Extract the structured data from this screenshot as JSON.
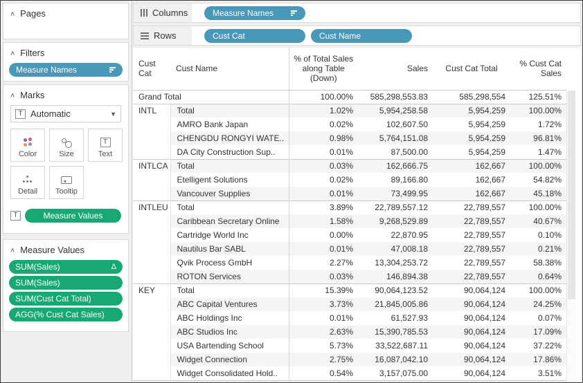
{
  "colors": {
    "pill_blue": "#4a98b9",
    "pill_green": "#17a874",
    "band": "#f5f5f5"
  },
  "sidebar": {
    "pages": {
      "title": "Pages"
    },
    "filters": {
      "title": "Filters",
      "pills": [
        {
          "label": "Measure Names",
          "sort_icon": true
        }
      ]
    },
    "marks": {
      "title": "Marks",
      "mark_type": {
        "label": "Automatic"
      },
      "buttons": [
        {
          "label": "Color",
          "icon": "color-icon"
        },
        {
          "label": "Size",
          "icon": "size-icon"
        },
        {
          "label": "Text",
          "icon": "text-icon"
        },
        {
          "label": "Detail",
          "icon": "detail-icon"
        },
        {
          "label": "Tooltip",
          "icon": "tooltip-icon"
        }
      ],
      "text_pill": {
        "label": "Measure Values"
      }
    },
    "measure_values": {
      "title": "Measure Values",
      "pills": [
        {
          "label": "SUM(Sales)",
          "badge": "Δ"
        },
        {
          "label": "SUM(Sales)"
        },
        {
          "label": "SUM(Cust Cat Total)"
        },
        {
          "label": "AGG(% Cust Cat Sales)"
        }
      ]
    }
  },
  "shelves": {
    "columns": {
      "label": "Columns",
      "pills": [
        {
          "label": "Measure Names",
          "sort_icon": true,
          "wide": true
        }
      ]
    },
    "rows": {
      "label": "Rows",
      "pills": [
        {
          "label": "Cust Cat",
          "wide": true
        },
        {
          "label": "Cust Name",
          "wide": true
        }
      ]
    }
  },
  "table": {
    "headers": {
      "cat": "Cust Cat",
      "name": "Cust Name",
      "pct": "% of Total Sales\nalong Table\n(Down)",
      "sales": "Sales",
      "total": "Cust Cat Total",
      "pctcat": "% Cust Cat\nSales"
    },
    "rows": [
      {
        "grand": true,
        "name": "Grand Total",
        "pct": "100.00%",
        "sales": "585,298,553.83",
        "total": "585,298,554",
        "pctcat": "125.51%"
      },
      {
        "cat": "INTL",
        "span": 4,
        "name": "Total",
        "pct": "1.02%",
        "sales": "5,954,258.58",
        "total": "5,954,259",
        "pctcat": "100.00%"
      },
      {
        "name": "AMRO Bank Japan",
        "pct": "0.02%",
        "sales": "102,607.50",
        "total": "5,954,259",
        "pctcat": "1.72%"
      },
      {
        "name": "CHENGDU RONGYI WATE..",
        "pct": "0.98%",
        "sales": "5,764,151.08",
        "total": "5,954,259",
        "pctcat": "96.81%"
      },
      {
        "name": "DA City Construction Sup..",
        "pct": "0.01%",
        "sales": "87,500.00",
        "total": "5,954,259",
        "pctcat": "1.47%"
      },
      {
        "cat": "INTLCA",
        "span": 3,
        "name": "Total",
        "pct": "0.03%",
        "sales": "162,666.75",
        "total": "162,667",
        "pctcat": "100.00%"
      },
      {
        "name": "Etelligent Solutions",
        "pct": "0.02%",
        "sales": "89,166.80",
        "total": "162,667",
        "pctcat": "54.82%"
      },
      {
        "name": "Vancouver Supplies",
        "pct": "0.01%",
        "sales": "73,499.95",
        "total": "162,667",
        "pctcat": "45.18%"
      },
      {
        "cat": "INTLEU",
        "span": 6,
        "name": "Total",
        "pct": "3.89%",
        "sales": "22,789,557.12",
        "total": "22,789,557",
        "pctcat": "100.00%"
      },
      {
        "name": "Caribbean Secretary Online",
        "pct": "1.58%",
        "sales": "9,268,529.89",
        "total": "22,789,557",
        "pctcat": "40.67%"
      },
      {
        "name": "Cartridge World Inc",
        "pct": "0.00%",
        "sales": "22,870.95",
        "total": "22,789,557",
        "pctcat": "0.10%"
      },
      {
        "name": "Nautilus Bar SABL",
        "pct": "0.01%",
        "sales": "47,008.18",
        "total": "22,789,557",
        "pctcat": "0.21%"
      },
      {
        "name": "Qvik Process GmbH",
        "pct": "2.27%",
        "sales": "13,304,253.72",
        "total": "22,789,557",
        "pctcat": "58.38%"
      },
      {
        "name": "ROTON Services",
        "pct": "0.03%",
        "sales": "146,894.38",
        "total": "22,789,557",
        "pctcat": "0.64%"
      },
      {
        "cat": "KEY",
        "span": 7,
        "name": "Total",
        "pct": "15.39%",
        "sales": "90,064,123.52",
        "total": "90,064,124",
        "pctcat": "100.00%"
      },
      {
        "name": "ABC Capital Ventures",
        "pct": "3.73%",
        "sales": "21,845,005.86",
        "total": "90,064,124",
        "pctcat": "24.25%"
      },
      {
        "name": "ABC Holdings Inc",
        "pct": "0.01%",
        "sales": "61,527.93",
        "total": "90,064,124",
        "pctcat": "0.07%"
      },
      {
        "name": "ABC Studios Inc",
        "pct": "2.63%",
        "sales": "15,390,785.53",
        "total": "90,064,124",
        "pctcat": "17.09%"
      },
      {
        "name": "USA Bartending School",
        "pct": "5.73%",
        "sales": "33,522,687.11",
        "total": "90,064,124",
        "pctcat": "37.22%"
      },
      {
        "name": "Widget Connection",
        "pct": "2.75%",
        "sales": "16,087,042.10",
        "total": "90,064,124",
        "pctcat": "17.86%"
      },
      {
        "name": "Widget Consolidated Hold..",
        "pct": "0.54%",
        "sales": "3,157,075.00",
        "total": "90,064,124",
        "pctcat": "3.51%"
      }
    ]
  }
}
